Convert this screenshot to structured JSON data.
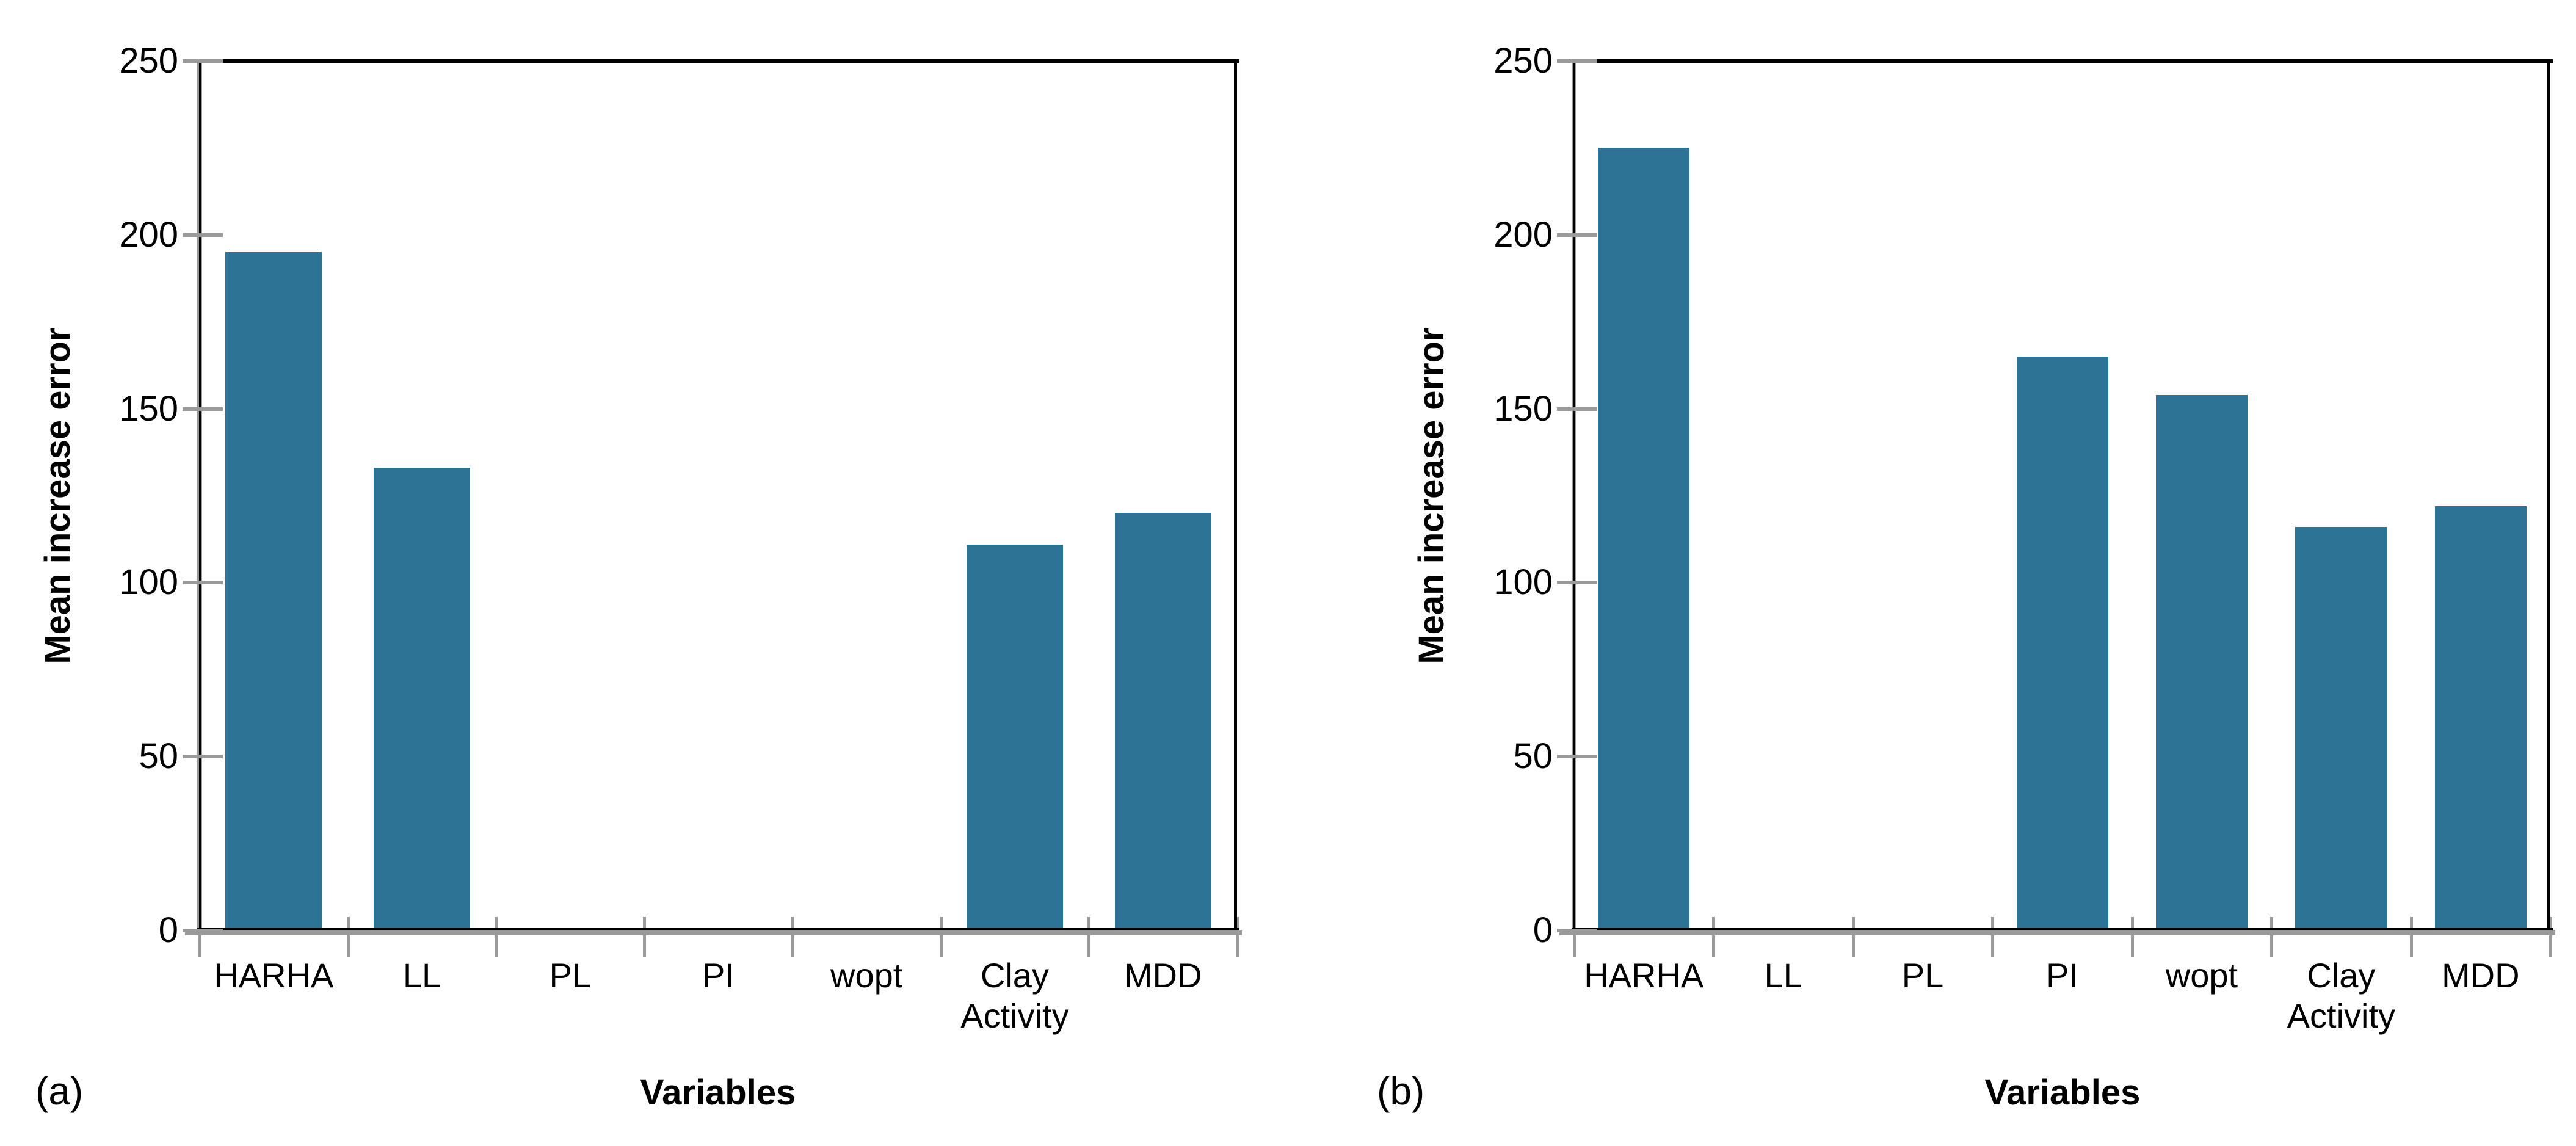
{
  "figure": {
    "background": "#FFFFFF",
    "description": "Two-panel bar figure of mean increase error per input variable"
  },
  "colors": {
    "bar": "#2D7396",
    "axis_gray": "#9A9A9A",
    "axis_black": "#000000",
    "text": "#000000"
  },
  "chart_data": [
    {
      "id": "a",
      "type": "bar",
      "panel_label": "(a)",
      "title": "",
      "categories": [
        "HARHA",
        "LL",
        "PL",
        "PI",
        "wopt",
        "Clay Activity",
        "MDD"
      ],
      "values": [
        195,
        133,
        0,
        0,
        0,
        111,
        120
      ],
      "xlabel": "Variables",
      "ylabel": "Mean increase error",
      "ylim": [
        0,
        250
      ],
      "yticks": [
        0,
        50,
        100,
        150,
        200,
        250
      ],
      "grid": false,
      "legend": null,
      "bar_color": "#2D7396"
    },
    {
      "id": "b",
      "type": "bar",
      "panel_label": "(b)",
      "title": "",
      "categories": [
        "HARHA",
        "LL",
        "PL",
        "PI",
        "wopt",
        "Clay Activity",
        "MDD"
      ],
      "values": [
        225,
        0,
        0,
        165,
        154,
        116,
        122
      ],
      "xlabel": "Variables",
      "ylabel": "Mean increase error",
      "ylim": [
        0,
        250
      ],
      "yticks": [
        0,
        50,
        100,
        150,
        200,
        250
      ],
      "grid": false,
      "legend": null,
      "bar_color": "#2D7396"
    }
  ]
}
